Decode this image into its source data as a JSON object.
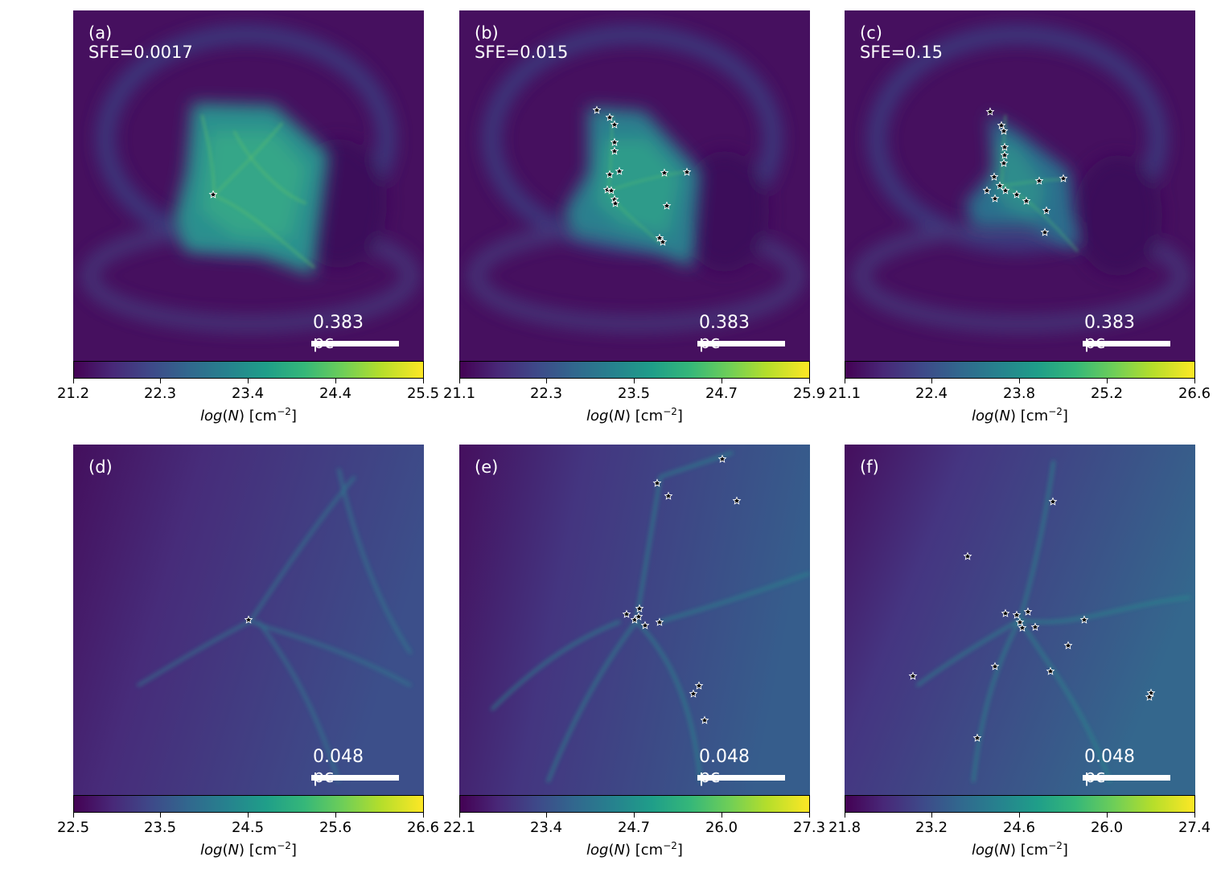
{
  "figure": {
    "panels": [
      {
        "label": "(a) SFE=0.0017",
        "scale": "0.383 pc",
        "ticks": [
          "21.2",
          "22.3",
          "23.4",
          "24.4",
          "25.5"
        ]
      },
      {
        "label": "(b) SFE=0.015",
        "scale": "0.383 pc",
        "ticks": [
          "21.1",
          "22.3",
          "23.5",
          "24.7",
          "25.9"
        ]
      },
      {
        "label": "(c) SFE=0.15",
        "scale": "0.383 pc",
        "ticks": [
          "21.1",
          "22.4",
          "23.8",
          "25.2",
          "26.6"
        ]
      },
      {
        "label": "(d)",
        "scale": "0.048 pc",
        "ticks": [
          "22.5",
          "23.5",
          "24.5",
          "25.6",
          "26.6"
        ]
      },
      {
        "label": "(e)",
        "scale": "0.048 pc",
        "ticks": [
          "22.1",
          "23.4",
          "24.7",
          "26.0",
          "27.3"
        ]
      },
      {
        "label": "(f)",
        "scale": "0.048 pc",
        "ticks": [
          "21.8",
          "23.2",
          "24.6",
          "26.0",
          "27.4"
        ]
      }
    ],
    "colorbar_label": {
      "log": "log",
      "open": "(",
      "var": "N",
      "close": ")",
      "unit": " [cm",
      "exp": "−2",
      "end": "]"
    },
    "colormap": [
      "#440154",
      "#482878",
      "#3e4989",
      "#31688e",
      "#26828e",
      "#1f9e89",
      "#35b779",
      "#6ece58",
      "#b5de2b",
      "#fde725"
    ]
  }
}
